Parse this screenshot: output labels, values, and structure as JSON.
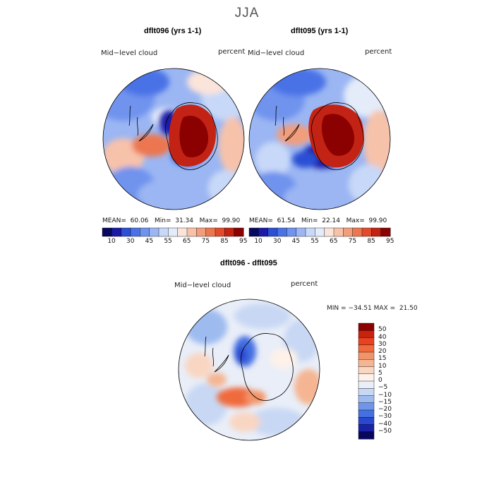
{
  "figure": {
    "season": "JJA"
  },
  "panels": [
    {
      "title": "dflt096 (yrs 1-1)",
      "variable_label": "Mid−level cloud",
      "units_label": "percent",
      "stats": {
        "mean_label": "MEAN=",
        "mean": "60.06",
        "min_label": "Min=",
        "min": "31.34",
        "max_label": "Max=",
        "max": "99.90"
      }
    },
    {
      "title": "dflt095 (yrs 1-1)",
      "variable_label": "Mid−level cloud",
      "units_label": "percent",
      "stats": {
        "mean_label": "MEAN=",
        "mean": "61.54",
        "min_label": "Min=",
        "min": "22.14",
        "max_label": "Max=",
        "max": "99.90"
      }
    }
  ],
  "colorbar": {
    "tick_labels": [
      "10",
      "30",
      "45",
      "55",
      "65",
      "75",
      "85",
      "95"
    ],
    "colors": [
      "#08085e",
      "#1a1aa8",
      "#2c4fd4",
      "#4a72e6",
      "#6f93ee",
      "#9bb6f3",
      "#c7d8f8",
      "#e4ecf9",
      "#fbe4da",
      "#f7c2aa",
      "#f29d7c",
      "#ec764f",
      "#e24c2c",
      "#c32314",
      "#8b0000"
    ]
  },
  "difference": {
    "title": "dflt096 - dflt095",
    "variable_label": "Mid−level cloud",
    "units_label": "percent",
    "min_label": "MIN =",
    "min": "−34.51",
    "max_label": "MAX =",
    "max": "21.50",
    "colorbar": {
      "tick_labels": [
        "50",
        "40",
        "30",
        "20",
        "15",
        "10",
        "5",
        "0",
        "−5",
        "−10",
        "−15",
        "−20",
        "−30",
        "−40",
        "−50"
      ],
      "colors": [
        "#8b0000",
        "#c8230e",
        "#e8431e",
        "#ef6a3d",
        "#f39468",
        "#f5b592",
        "#f9d6c2",
        "#fdf1ea",
        "#e9eef8",
        "#c8d8f4",
        "#9ebbf0",
        "#7096ea",
        "#4570e2",
        "#2a47cf",
        "#1a22a6",
        "#07075e"
      ]
    }
  }
}
